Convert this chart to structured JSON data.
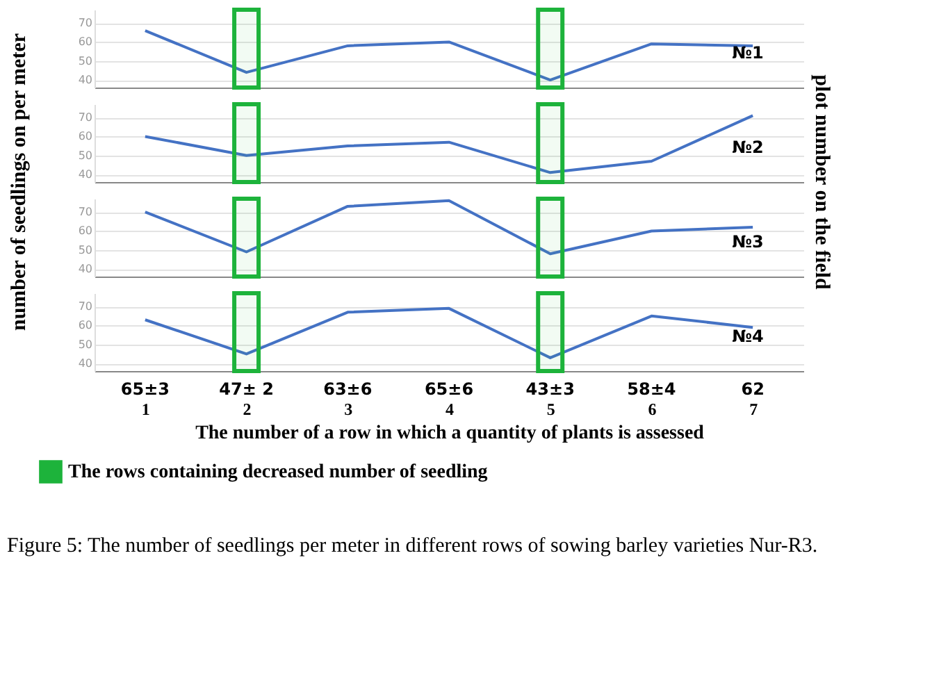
{
  "chart_data": [
    {
      "type": "line",
      "ylabel": "number of  seedlings on per meter",
      "y2label": "plot number on the field",
      "categories": [
        "1",
        "2",
        "3",
        "4",
        "5",
        "6",
        "7"
      ],
      "series": [
        {
          "name": "№1",
          "color": "#4472c4",
          "values": [
            66,
            44,
            58,
            60,
            40,
            59,
            58
          ]
        }
      ],
      "ylim": [
        36,
        77
      ],
      "yticks": [
        40,
        50,
        60,
        70
      ],
      "grid": "y",
      "tick_labels": "y",
      "bands": [
        {
          "axis": "x",
          "from": "2",
          "to": "2",
          "color": "#1db33b"
        },
        {
          "axis": "x",
          "from": "5",
          "to": "5",
          "color": "#1db33b"
        }
      ]
    },
    {
      "type": "line",
      "categories": [
        "1",
        "2",
        "3",
        "4",
        "5",
        "6",
        "7"
      ],
      "series": [
        {
          "name": "№2",
          "color": "#4472c4",
          "values": [
            60,
            50,
            55,
            57,
            41,
            47,
            71
          ]
        }
      ],
      "ylim": [
        36,
        77
      ],
      "yticks": [
        40,
        50,
        60,
        70
      ],
      "grid": "y",
      "tick_labels": "y",
      "bands": [
        {
          "axis": "x",
          "from": "2",
          "to": "2",
          "color": "#1db33b"
        },
        {
          "axis": "x",
          "from": "5",
          "to": "5",
          "color": "#1db33b"
        }
      ]
    },
    {
      "type": "line",
      "categories": [
        "1",
        "2",
        "3",
        "4",
        "5",
        "6",
        "7"
      ],
      "series": [
        {
          "name": "№3",
          "color": "#4472c4",
          "values": [
            70,
            49,
            73,
            76,
            48,
            60,
            62
          ]
        }
      ],
      "ylim": [
        36,
        77
      ],
      "yticks": [
        40,
        50,
        60,
        70
      ],
      "grid": "y",
      "tick_labels": "y",
      "bands": [
        {
          "axis": "x",
          "from": "2",
          "to": "2",
          "color": "#1db33b"
        },
        {
          "axis": "x",
          "from": "5",
          "to": "5",
          "color": "#1db33b"
        }
      ]
    },
    {
      "type": "line",
      "xlabel": "The number of a row in which a quantity of plants is assessed",
      "categories": [
        "1",
        "2",
        "3",
        "4",
        "5",
        "6",
        "7"
      ],
      "series": [
        {
          "name": "№4",
          "color": "#4472c4",
          "values": [
            63,
            45,
            67,
            69,
            43,
            65,
            59
          ]
        }
      ],
      "ylim": [
        36,
        77
      ],
      "yticks": [
        40,
        50,
        60,
        70
      ],
      "grid": "y",
      "bands": [
        {
          "axis": "x",
          "from": "2",
          "to": "2",
          "color": "#1db33b",
          "label": "The rows containing decreased number of seedling"
        },
        {
          "axis": "x",
          "from": "5",
          "to": "5",
          "color": "#1db33b"
        }
      ],
      "legend": "bottom left",
      "annotations": [
        "65±3",
        "47± 2",
        "63±6",
        "65±6",
        "43±3",
        "58±4",
        "62",
        "Figure 5: The number of seedlings per meter in different rows of sowing barley varieties Nur-R3."
      ]
    }
  ]
}
